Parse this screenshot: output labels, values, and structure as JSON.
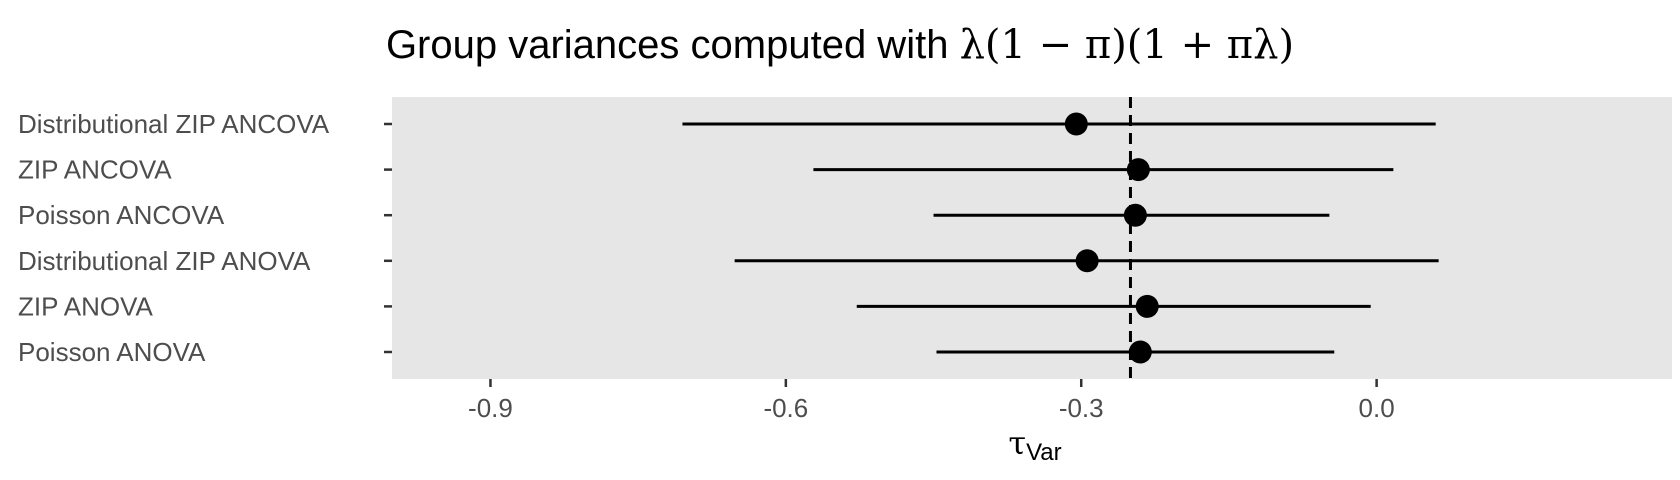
{
  "chart_data": {
    "type": "forest",
    "title": {
      "prefix": "Group variances computed with ",
      "formula": "λ(1 − π)(1 + πλ)"
    },
    "xlabel": {
      "main": "τ",
      "sub": "Var"
    },
    "xlim": [
      -1.0,
      0.3
    ],
    "xticks": [
      -0.9,
      -0.6,
      -0.3,
      0.0
    ],
    "xtick_labels": [
      "-0.9",
      "-0.6",
      "-0.3",
      "0.0"
    ],
    "reference_line": -0.25,
    "background_color": "#e6e6e6",
    "grid": false,
    "rows": [
      {
        "label": "Distributional ZIP ANCOVA",
        "estimate": -0.305,
        "lower": -0.705,
        "upper": 0.06
      },
      {
        "label": "ZIP ANCOVA",
        "estimate": -0.242,
        "lower": -0.572,
        "upper": 0.017
      },
      {
        "label": "Poisson ANCOVA",
        "estimate": -0.245,
        "lower": -0.45,
        "upper": -0.048
      },
      {
        "label": "Distributional ZIP ANOVA",
        "estimate": -0.294,
        "lower": -0.652,
        "upper": 0.063
      },
      {
        "label": "ZIP ANOVA",
        "estimate": -0.233,
        "lower": -0.528,
        "upper": -0.006
      },
      {
        "label": "Poisson ANOVA",
        "estimate": -0.24,
        "lower": -0.447,
        "upper": -0.043
      }
    ]
  }
}
